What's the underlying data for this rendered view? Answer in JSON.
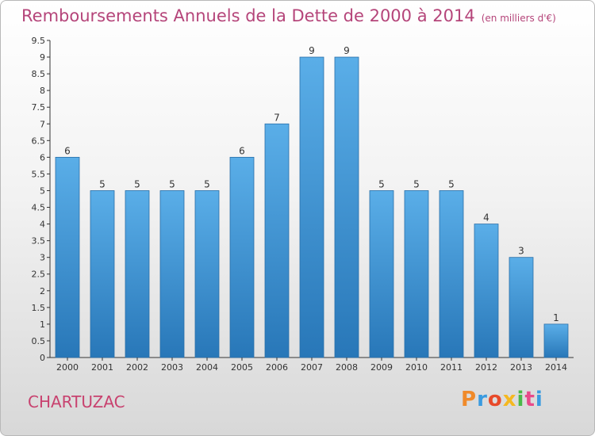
{
  "header": {
    "title": "Remboursements Annuels de la Dette de 2000 à 2014",
    "unit": "(en milliers d'€)"
  },
  "footer": {
    "commune": "CHARTUZAC",
    "logo_text": "Proxiti"
  },
  "colors": {
    "title": "#b5457a",
    "bar_top": "#5aaee8",
    "bar_bottom": "#2877b8",
    "logo": [
      "#f08a2a",
      "#3a9be0",
      "#e84a2a",
      "#f5b820",
      "#4ab848",
      "#e84a8a",
      "#3a9be0"
    ]
  },
  "chart_data": {
    "type": "bar",
    "title": "Remboursements Annuels de la Dette de 2000 à 2014",
    "subtitle": "(en milliers d'€)",
    "categories": [
      "2000",
      "2001",
      "2002",
      "2003",
      "2004",
      "2005",
      "2006",
      "2007",
      "2008",
      "2009",
      "2010",
      "2011",
      "2012",
      "2013",
      "2014"
    ],
    "values": [
      6,
      5,
      5,
      5,
      5,
      6,
      7,
      9,
      9,
      5,
      5,
      5,
      4,
      3,
      1
    ],
    "data_labels": [
      "6",
      "5",
      "5",
      "5",
      "5",
      "6",
      "7",
      "9",
      "9",
      "5",
      "5",
      "5",
      "4",
      "3",
      "1"
    ],
    "ylim": [
      0,
      9.5
    ],
    "y_ticks": [
      "0",
      "0.5",
      "1",
      "1.5",
      "2",
      "2.5",
      "3",
      "3.5",
      "4",
      "4.5",
      "5",
      "5.5",
      "6",
      "6.5",
      "7",
      "7.5",
      "8",
      "8.5",
      "9",
      "9.5"
    ],
    "y_tick_values": [
      0,
      0.5,
      1,
      1.5,
      2,
      2.5,
      3,
      3.5,
      4,
      4.5,
      5,
      5.5,
      6,
      6.5,
      7,
      7.5,
      8,
      8.5,
      9,
      9.5
    ],
    "grid": false
  }
}
